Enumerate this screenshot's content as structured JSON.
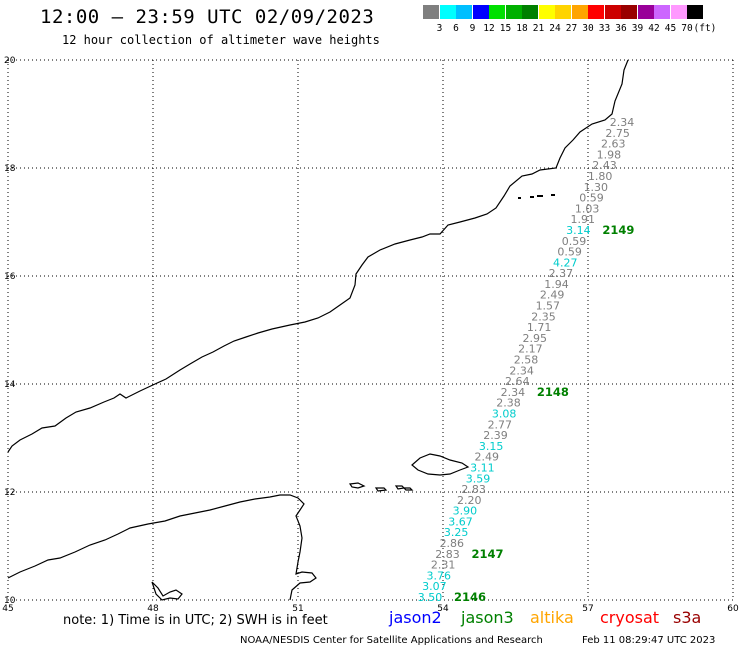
{
  "title": "12:00 – 23:59 UTC 02/09/2023",
  "subtitle": "12 hour collection of altimeter wave heights",
  "scale": {
    "colors": [
      "#7f7f7f",
      "#00ffff",
      "#00bfff",
      "#0000ff",
      "#00e000",
      "#00b000",
      "#008000",
      "#ffff00",
      "#ffd400",
      "#ffa500",
      "#ff0000",
      "#cc0000",
      "#990000",
      "#990099",
      "#cc66ff",
      "#ff99ff",
      "#000000"
    ],
    "labels": [
      "3",
      "6",
      "9",
      "12",
      "15",
      "18",
      "21",
      "24",
      "27",
      "30",
      "33",
      "36",
      "39",
      "42",
      "45",
      "70",
      "(ft)"
    ]
  },
  "axes": {
    "x_ticks": [
      "45",
      "48",
      "51",
      "54",
      "57",
      "60"
    ],
    "y_ticks": [
      "20",
      "18",
      "16",
      "14",
      "12",
      "10"
    ],
    "x_range": [
      45,
      60
    ],
    "y_range": [
      10,
      20
    ]
  },
  "tracks": [
    {
      "id": "2149",
      "color": "#008000"
    },
    {
      "id": "2148",
      "color": "#008000"
    },
    {
      "id": "2147",
      "color": "#008000"
    },
    {
      "id": "2146",
      "color": "#008000"
    }
  ],
  "observations": [
    {
      "v": "2.34",
      "c": "g"
    },
    {
      "v": "2.75",
      "c": "g"
    },
    {
      "v": "2.63",
      "c": "g"
    },
    {
      "v": "1.98",
      "c": "g"
    },
    {
      "v": "2.43",
      "c": "g"
    },
    {
      "v": "1.80",
      "c": "g"
    },
    {
      "v": "1.30",
      "c": "g"
    },
    {
      "v": "0.59",
      "c": "g"
    },
    {
      "v": "1.03",
      "c": "g"
    },
    {
      "v": "1.91",
      "c": "g"
    },
    {
      "v": "3.14",
      "c": "c"
    },
    {
      "v": "0.59",
      "c": "g"
    },
    {
      "v": "0.59",
      "c": "g"
    },
    {
      "v": "4.27",
      "c": "c"
    },
    {
      "v": "2.37",
      "c": "g"
    },
    {
      "v": "1.94",
      "c": "g"
    },
    {
      "v": "2.49",
      "c": "g"
    },
    {
      "v": "1.57",
      "c": "g"
    },
    {
      "v": "2.35",
      "c": "g"
    },
    {
      "v": "1.71",
      "c": "g"
    },
    {
      "v": "2.95",
      "c": "g"
    },
    {
      "v": "2.17",
      "c": "g"
    },
    {
      "v": "2.58",
      "c": "g"
    },
    {
      "v": "2.34",
      "c": "g"
    },
    {
      "v": "2.64",
      "c": "g"
    },
    {
      "v": "2.34",
      "c": "g"
    },
    {
      "v": "2.38",
      "c": "g"
    },
    {
      "v": "3.08",
      "c": "c"
    },
    {
      "v": "2.77",
      "c": "g"
    },
    {
      "v": "2.39",
      "c": "g"
    },
    {
      "v": "3.15",
      "c": "c"
    },
    {
      "v": "2.49",
      "c": "g"
    },
    {
      "v": "3.11",
      "c": "c"
    },
    {
      "v": "3.59",
      "c": "c"
    },
    {
      "v": "2.83",
      "c": "g"
    },
    {
      "v": "2.20",
      "c": "g"
    },
    {
      "v": "3.90",
      "c": "c"
    },
    {
      "v": "3.67",
      "c": "c"
    },
    {
      "v": "3.25",
      "c": "c"
    },
    {
      "v": "2.86",
      "c": "g"
    },
    {
      "v": "2.83",
      "c": "g"
    },
    {
      "v": "2.31",
      "c": "g"
    },
    {
      "v": "3.76",
      "c": "c"
    },
    {
      "v": "3.07",
      "c": "c"
    },
    {
      "v": "3.50",
      "c": "c"
    }
  ],
  "color_codes": {
    "g": "#7f7f7f",
    "c": "#00cccc"
  },
  "note": "note: 1) Time is in UTC; 2) SWH is in feet",
  "satellites": [
    {
      "name": "jason2",
      "color": "#0000ff"
    },
    {
      "name": "jason3",
      "color": "#008000"
    },
    {
      "name": "altika",
      "color": "#ffa500"
    },
    {
      "name": "cryosat",
      "color": "#ff0000"
    },
    {
      "name": "s3a",
      "color": "#990000"
    }
  ],
  "credit": "NOAA/NESDIS Center for Satellite Applications and Research",
  "timestamp": "Feb 11 08:29:47 UTC 2023"
}
